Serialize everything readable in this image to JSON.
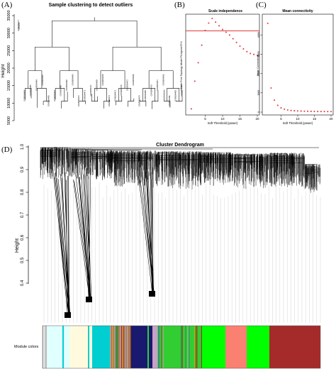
{
  "panels": {
    "A": {
      "letter": "(A)",
      "title": "Sample clustering to detect outliers",
      "ylabel": "Height",
      "yticks": [
        5000,
        10000,
        15000,
        20000,
        25000,
        30000,
        35000
      ]
    },
    "B": {
      "letter": "(B)",
      "title": "Scale independence",
      "xlabel": "Soft Threshold (power)",
      "ylabel": "Scale Free Topology Model Fit,signed R^2",
      "xticks": [
        5,
        10,
        15,
        20
      ]
    },
    "C": {
      "letter": "(C)",
      "title": "Mean connectivity",
      "xlabel": "Soft Threshold (power)",
      "ylabel": "Mean Connectivity",
      "xticks": [
        5,
        10,
        15,
        20
      ]
    },
    "D": {
      "letter": "(D)",
      "title": "Cluster Dendrogram",
      "ylabel": "Height",
      "yticks": [
        "1.0",
        "0.9",
        "0.8",
        "0.7",
        "0.6",
        "0.5",
        "0.4"
      ],
      "module_label": "Module colors"
    }
  },
  "chart_data": [
    {
      "type": "scatter",
      "title": "Scale independence",
      "xlabel": "Soft Threshold (power)",
      "ylabel": "Scale Free Topology Model Fit,signed R^2",
      "x": [
        1,
        2,
        3,
        4,
        5,
        6,
        7,
        8,
        9,
        10,
        11,
        12,
        13,
        14,
        15,
        16,
        17,
        18,
        19,
        20
      ],
      "y": [
        0.02,
        0.32,
        0.52,
        0.71,
        0.87,
        0.95,
        1.0,
        0.96,
        0.92,
        0.88,
        0.85,
        0.82,
        0.78,
        0.74,
        0.7,
        0.67,
        0.64,
        0.62,
        0.61,
        0.6
      ],
      "threshold_line": 0.85,
      "xlim": [
        0,
        20
      ],
      "colors": {
        "points": "#e03c3c",
        "line": "#e03c3c"
      }
    },
    {
      "type": "scatter",
      "title": "Mean connectivity",
      "xlabel": "Soft Threshold (power)",
      "ylabel": "Mean Connectivity",
      "x": [
        1,
        2,
        3,
        4,
        5,
        6,
        7,
        8,
        9,
        10,
        11,
        12,
        13,
        14,
        15,
        16,
        17,
        18,
        19,
        20
      ],
      "y": [
        4600,
        1250,
        620,
        350,
        220,
        150,
        110,
        85,
        70,
        60,
        52,
        46,
        42,
        38,
        35,
        33,
        31,
        30,
        29,
        28
      ],
      "ylim": [
        0,
        5000
      ],
      "yticks": [
        0,
        1000,
        2000,
        3000,
        4000
      ],
      "xlim": [
        0,
        20
      ],
      "colors": {
        "points": "#e03c3c"
      }
    }
  ],
  "sample_labels": [
    "GSM3064477",
    "GSM3064466",
    "GSM3064465",
    "GSM3064464",
    "GSM3064467",
    "GSM3064463",
    "GSM3064462",
    "GSM3064461",
    "GSM3064460",
    "GSM3064469",
    "GSM3064470",
    "GSM3064472",
    "GSM3064471",
    "GSM3064459",
    "GSM3064458",
    "GSM3064474",
    "GSM3064473",
    "GSM3064476",
    "GSM3064475",
    "GSM3064468",
    "GSM3064479",
    "GSM3064480",
    "GSM3064478",
    "GSM3064457",
    "GSM3064456",
    "GSM3064481",
    "GSM3064482",
    "GSM3064483"
  ],
  "module_colors": [
    "#eeeeee",
    "#e0ffff",
    "#fffadd",
    "#00ced1",
    "#b07a5a",
    "#191970",
    "#c8a0c8",
    "#32cd32",
    "#8fbc8f",
    "#fa8072",
    "#00ff00",
    "#a52a2a"
  ]
}
